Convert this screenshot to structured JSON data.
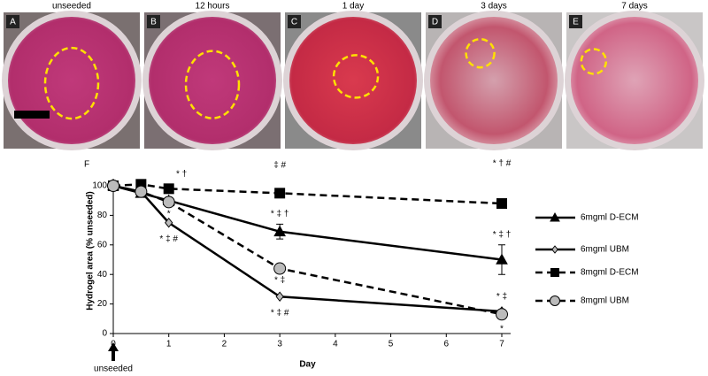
{
  "panels": [
    {
      "letter": "A",
      "caption": "unseeded"
    },
    {
      "letter": "B",
      "caption": "12 hours"
    },
    {
      "letter": "C",
      "caption": "1 day"
    },
    {
      "letter": "D",
      "caption": "3 days"
    },
    {
      "letter": "E",
      "caption": "7 days"
    }
  ],
  "chart_data": {
    "type": "line",
    "panel_letter": "F",
    "x_label": "Day",
    "y_label": "Hydrogel area (% unseeded)",
    "start_label": "unseeded",
    "xlim": [
      0,
      7
    ],
    "xticks": [
      0,
      1,
      2,
      3,
      4,
      5,
      6,
      7
    ],
    "ylim": [
      0,
      100
    ],
    "yticks": [
      0,
      20,
      40,
      60,
      80,
      100
    ],
    "legend": "right",
    "series": [
      {
        "name": "6mgml D-ECM",
        "color": "#000000",
        "marker": "triangle",
        "dashed": false,
        "x": [
          0,
          0.5,
          1,
          3,
          7
        ],
        "values": [
          100,
          95,
          90,
          69,
          50
        ],
        "errors": [
          null,
          null,
          null,
          5,
          10
        ]
      },
      {
        "name": "6mgml UBM",
        "color": "#000000",
        "marker": "diamond",
        "dashed": false,
        "x": [
          0,
          0.5,
          1,
          3,
          7
        ],
        "values": [
          100,
          96,
          75,
          25,
          15
        ]
      },
      {
        "name": "8mgml D-ECM",
        "color": "#000000",
        "marker": "square",
        "dashed": true,
        "x": [
          0,
          0.5,
          1,
          3,
          7
        ],
        "values": [
          100,
          101,
          98,
          95,
          88
        ]
      },
      {
        "name": "8mgml UBM",
        "color": "#000000",
        "marker": "circle",
        "dashed": true,
        "x": [
          0,
          0.5,
          1,
          3,
          7
        ],
        "values": [
          100,
          96,
          89,
          44,
          13
        ]
      }
    ],
    "annotations": [
      {
        "text": "*",
        "x": 1,
        "y": 81
      },
      {
        "text": "* †",
        "x": 1.23,
        "y": 108
      },
      {
        "text": "* ‡ #",
        "x": 1,
        "y": 64
      },
      {
        "text": "‡ #",
        "x": 3,
        "y": 114
      },
      {
        "text": "* ‡ †",
        "x": 3,
        "y": 81
      },
      {
        "text": "* ‡",
        "x": 3,
        "y": 36
      },
      {
        "text": "* ‡ #",
        "x": 3,
        "y": 14
      },
      {
        "text": "* † #",
        "x": 7,
        "y": 115
      },
      {
        "text": "* ‡ †",
        "x": 7,
        "y": 67
      },
      {
        "text": "* ‡",
        "x": 7,
        "y": 25
      },
      {
        "text": "*",
        "x": 7,
        "y": 3
      }
    ]
  }
}
